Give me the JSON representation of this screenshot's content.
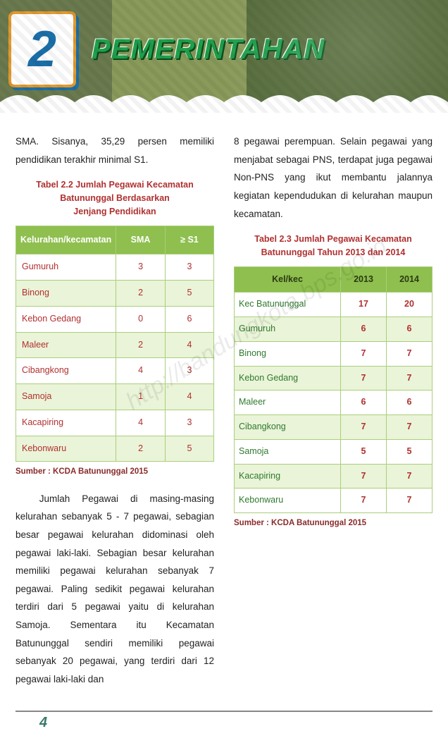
{
  "page": {
    "chapter_number": "2",
    "title": "PEMERINTAHAN",
    "page_number": "4",
    "watermark": "http://bandungkota.bps.go.id"
  },
  "left": {
    "para1": "SMA. Sisanya, 35,29 persen memiliki pendidikan terakhir minimal S1.",
    "table22_caption_l1": "Tabel 2.2 Jumlah Pegawai Kecamatan",
    "table22_caption_l2": "Batununggal Berdasarkan",
    "table22_caption_l3": "Jenjang Pendidikan",
    "table22": {
      "type": "table",
      "columns": [
        "Kelurahan/kecamatan",
        "SMA",
        "≥ S1"
      ],
      "rows": [
        [
          "Gumuruh",
          "3",
          "3"
        ],
        [
          "Binong",
          "2",
          "5"
        ],
        [
          "Kebon Gedang",
          "0",
          "6"
        ],
        [
          "Maleer",
          "2",
          "4"
        ],
        [
          "Cibangkong",
          "4",
          "3"
        ],
        [
          "Samoja",
          "1",
          "4"
        ],
        [
          "Kacapiring",
          "4",
          "3"
        ],
        [
          "Kebonwaru",
          "2",
          "5"
        ]
      ],
      "header_bg": "#8fbf4f",
      "header_fg": "#ffffff",
      "row_fg_name": "#b03030",
      "row_fg_value": "#b03030",
      "border_color": "#a9cf7a",
      "alt_row_bg": "#eaf4d8"
    },
    "source22": "Sumber : KCDA Batununggal 2015",
    "para2": "Jumlah Pegawai di masing-masing kelurahan sebanyak 5 - 7 pegawai, sebagian besar pegawai kelurahan didominasi oleh pegawai laki-laki. Sebagian besar kelurahan memiliki pegawai kelurahan sebanyak 7 pegawai. Paling sedikit pegawai kelurahan terdiri dari 5 pegawai yaitu di kelurahan Samoja. Sementara itu Kecamatan Batununggal sendiri memiliki pegawai sebanyak 20 pegawai, yang terdiri dari 12 pegawai laki-laki dan"
  },
  "right": {
    "para1": "8 pegawai perempuan. Selain pegawai yang menjabat sebagai PNS, terdapat juga pegawai Non-PNS yang ikut membantu jalannya kegiatan kependudukan di kelurahan maupun kecamatan.",
    "table23_caption_l1": "Tabel 2.3 Jumlah Pegawai Kecamatan",
    "table23_caption_l2": "Batununggal Tahun 2013 dan 2014",
    "table23": {
      "type": "table",
      "columns": [
        "Kel/kec",
        "2013",
        "2014"
      ],
      "rows": [
        [
          "Kec Batununggal",
          "17",
          "20"
        ],
        [
          "Gumuruh",
          "6",
          "6"
        ],
        [
          "Binong",
          "7",
          "7"
        ],
        [
          "Kebon Gedang",
          "7",
          "7"
        ],
        [
          "Maleer",
          "6",
          "6"
        ],
        [
          "Cibangkong",
          "7",
          "7"
        ],
        [
          "Samoja",
          "5",
          "5"
        ],
        [
          "Kacapiring",
          "7",
          "7"
        ],
        [
          "Kebonwaru",
          "7",
          "7"
        ]
      ],
      "header_bg": "#8fbf4f",
      "header_fg": "#2a3a12",
      "row_fg_name": "#2f7a2f",
      "row_fg_value": "#b03030",
      "border_color": "#a9cf7a",
      "alt_row_bg": "#eaf4d8"
    },
    "source23": "Sumber : KCDA Batununggal 2015"
  }
}
